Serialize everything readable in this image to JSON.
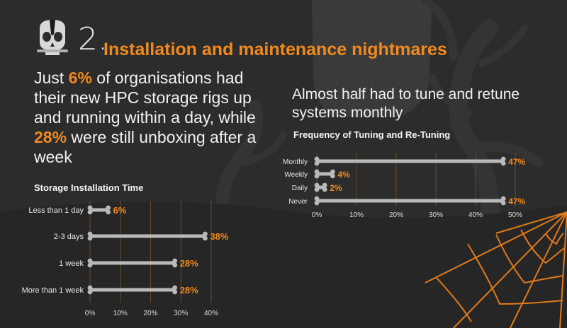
{
  "header": {
    "number": "2.",
    "title": "Installation and maintenance nightmares"
  },
  "lead": {
    "part1": "Just ",
    "hl1": "6%",
    "part2": " of organisations had their new HPC storage rigs up and running within a day, while ",
    "hl2": "28%",
    "part3": " were still unboxing after a week"
  },
  "right_heading": "Almost half had to tune and retune systems monthly",
  "colors": {
    "accent": "#f08a1e",
    "bar": "#b9b9b9",
    "background": "#2c2c2c",
    "text": "#f2f2f2"
  },
  "icons": [
    "skull-icon",
    "spider-web-icon",
    "gravestone-icon",
    "dead-tree-icon"
  ],
  "chart_data": [
    {
      "type": "bar",
      "orientation": "horizontal",
      "title": "Storage Installation Time",
      "categories": [
        "Less than 1 day",
        "2-3 days",
        "1 week",
        "More than 1 week"
      ],
      "values": [
        6,
        38,
        28,
        28
      ],
      "value_labels": [
        "6%",
        "38%",
        "28%",
        "28%"
      ],
      "xlim": [
        0,
        40
      ],
      "xticks": [
        "0%",
        "10%",
        "20%",
        "30%",
        "40%"
      ],
      "grid": true
    },
    {
      "type": "bar",
      "orientation": "horizontal",
      "title": "Frequency of Tuning and Re-Tuning",
      "categories": [
        "Monthly",
        "Weekly",
        "Daily",
        "Never"
      ],
      "values": [
        47,
        4,
        2,
        47
      ],
      "value_labels": [
        "47%",
        "4%",
        "2%",
        "47%"
      ],
      "xlim": [
        0,
        50
      ],
      "xticks": [
        "0%",
        "10%",
        "20%",
        "30%",
        "40%",
        "50%"
      ],
      "grid": true
    }
  ]
}
